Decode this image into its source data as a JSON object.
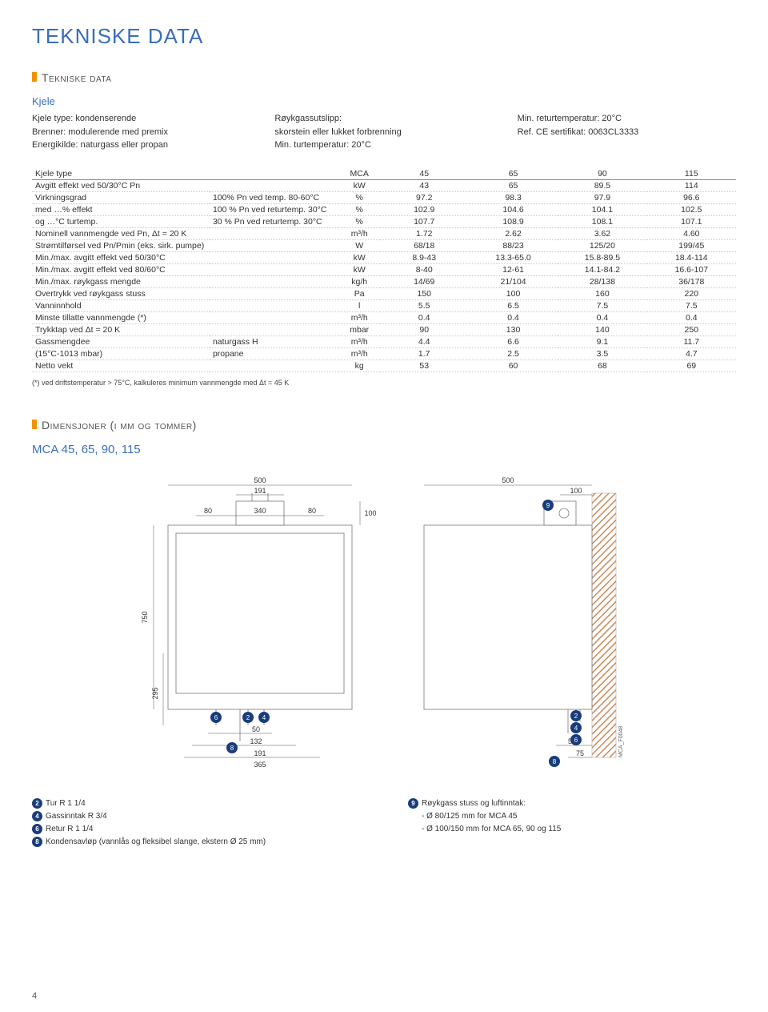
{
  "page": {
    "title": "TEKNISKE DATA",
    "section1": "Tekniske data",
    "section2": "Dimensjoner (i mm og tommer)",
    "model_line": "MCA 45, 65, 90, 115",
    "page_number": "4"
  },
  "intro": {
    "col1_head": "Kjele",
    "col1_l1": "Kjele type: kondenserende",
    "col1_l2": "Brenner: modulerende med premix",
    "col1_l3": "Energikilde: naturgass eller propan",
    "col2_l1": "Røykgassutslipp:",
    "col2_l2": "skorstein eller lukket forbrenning",
    "col2_l3": "Min. turtemperatur: 20°C",
    "col3_l1": "Min. returtemperatur: 20°C",
    "col3_l2": "Ref. CE sertifikat: 0063CL3333"
  },
  "table": {
    "head": {
      "c0": "Kjele type",
      "c1": "",
      "unit": "MCA",
      "v1": "45",
      "v2": "65",
      "v3": "90",
      "v4": "115"
    },
    "rows": [
      {
        "c0": "Avgitt effekt ved 50/30°C Pn",
        "c1": "",
        "unit": "kW",
        "v1": "43",
        "v2": "65",
        "v3": "89.5",
        "v4": "114"
      },
      {
        "c0": "Virkningsgrad",
        "c1": "100% Pn ved temp. 80-60°C",
        "unit": "%",
        "v1": "97.2",
        "v2": "98.3",
        "v3": "97.9",
        "v4": "96.6"
      },
      {
        "c0": "med …% effekt",
        "c1": "100 % Pn ved returtemp. 30°C",
        "unit": "%",
        "v1": "102.9",
        "v2": "104.6",
        "v3": "104.1",
        "v4": "102.5"
      },
      {
        "c0": "og …°C turtemp.",
        "c1": "30 % Pn ved returtemp. 30°C",
        "unit": "%",
        "v1": "107.7",
        "v2": "108.9",
        "v3": "108.1",
        "v4": "107.1"
      },
      {
        "c0": "Nominell vannmengde  ved Pn, Δt = 20 K",
        "c1": "",
        "unit": "m³/h",
        "v1": "1.72",
        "v2": "2.62",
        "v3": "3.62",
        "v4": "4.60"
      },
      {
        "c0": "Strømtilførsel ved Pn/Pmin (eks. sirk. pumpe)",
        "c1": "",
        "unit": "W",
        "v1": "68/18",
        "v2": "88/23",
        "v3": "125/20",
        "v4": "199/45"
      },
      {
        "c0": "Min./max. avgitt effekt ved 50/30°C",
        "c1": "",
        "unit": "kW",
        "v1": "8.9-43",
        "v2": "13.3-65.0",
        "v3": "15.8-89.5",
        "v4": "18.4-114"
      },
      {
        "c0": "Min./max. avgitt effekt ved 80/60°C",
        "c1": "",
        "unit": "kW",
        "v1": "8-40",
        "v2": "12-61",
        "v3": "14.1-84.2",
        "v4": "16.6-107"
      },
      {
        "c0": "Min./max. røykgass mengde",
        "c1": "",
        "unit": "kg/h",
        "v1": "14/69",
        "v2": "21/104",
        "v3": "28/138",
        "v4": "36/178"
      },
      {
        "c0": "Overtrykk ved røykgass stuss",
        "c1": "",
        "unit": "Pa",
        "v1": "150",
        "v2": "100",
        "v3": "160",
        "v4": "220"
      },
      {
        "c0": "Vanninnhold",
        "c1": "",
        "unit": "l",
        "v1": "5.5",
        "v2": "6.5",
        "v3": "7.5",
        "v4": "7.5"
      },
      {
        "c0": "Minste tillatte vannmengde (*)",
        "c1": "",
        "unit": "m³/h",
        "v1": "0.4",
        "v2": "0.4",
        "v3": "0.4",
        "v4": "0.4"
      },
      {
        "c0": "Trykktap ved Δt = 20 K",
        "c1": "",
        "unit": "mbar",
        "v1": "90",
        "v2": "130",
        "v3": "140",
        "v4": "250"
      },
      {
        "c0": "Gassmengdee",
        "c1": "naturgass H",
        "unit": "m³/h",
        "v1": "4.4",
        "v2": "6.6",
        "v3": "9.1",
        "v4": "11.7"
      },
      {
        "c0": "(15°C-1013 mbar)",
        "c1": "propane",
        "unit": "m³/h",
        "v1": "1.7",
        "v2": "2.5",
        "v3": "3.5",
        "v4": "4.7"
      },
      {
        "c0": "Netto vekt",
        "c1": "",
        "unit": "kg",
        "v1": "53",
        "v2": "60",
        "v3": "68",
        "v4": "69"
      }
    ],
    "footnote": "(*) ved driftstemperatur > 75°C, kalkuleres minimum vannmengde med Δt = 45 K"
  },
  "diagram": {
    "front": {
      "w500": "500",
      "w191": "191",
      "h100": "100",
      "d80a": "80",
      "d340": "340",
      "d80b": "80",
      "h750": "750",
      "h295": "295",
      "d50": "50",
      "d132": "132",
      "d191b": "191",
      "d365": "365"
    },
    "side": {
      "w500": "500",
      "w100": "100",
      "d50": "50",
      "d75": "75"
    },
    "ref": "MCA_F0048",
    "callouts": {
      "c2": "2",
      "c4": "4",
      "c6": "6",
      "c8": "8",
      "c9": "9"
    }
  },
  "legend": {
    "l2": "Tur R 1 1/4",
    "l4": "Gassinntak R 3/4",
    "l6": "Retur R 1 1/4",
    "l8": "Kondensavløp (vannlås og fleksibel slange, ekstern Ø 25 mm)",
    "l9": "Røykgass stuss og luftinntak:",
    "l9a": "- Ø 80/125 mm for MCA 45",
    "l9b": "- Ø 100/150 mm for MCA 65, 90 og 115"
  }
}
